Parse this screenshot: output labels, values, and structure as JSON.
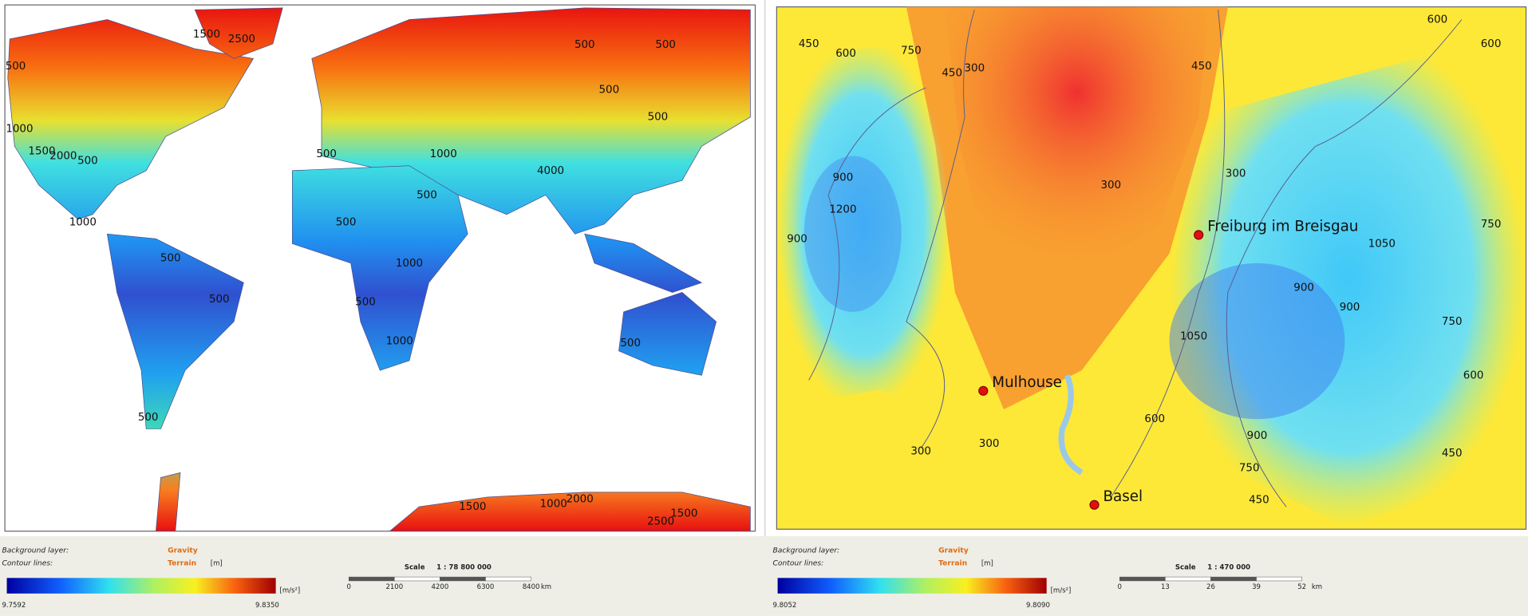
{
  "panels": [
    {
      "background_label": "Background layer:",
      "background_value": "Gravity",
      "contour_label": "Contour lines:",
      "contour_value": "Terrain",
      "contour_unit": "[m]",
      "colorbar_unit": "[m/s²]",
      "colorbar_min": "9.7592",
      "colorbar_max": "9.8350",
      "scale_label": "Scale",
      "scale_ratio": "1  :  78 800 000",
      "scale_ticks": [
        "0",
        "2100",
        "4200",
        "6300",
        "8400"
      ],
      "scale_unit": "km",
      "contour_labels": [
        "1500",
        "2500",
        "500",
        "500",
        "500",
        "1000",
        "1500",
        "2000",
        "500",
        "500",
        "1000",
        "500",
        "500",
        "1000",
        "500",
        "500",
        "1000",
        "500",
        "500",
        "1000",
        "500",
        "500",
        "1500",
        "2000",
        "1500",
        "2500",
        "1000",
        "4000",
        "500"
      ],
      "cities": []
    },
    {
      "background_label": "Background layer:",
      "background_value": "Gravity",
      "contour_label": "Contour lines:",
      "contour_value": "Terrain",
      "contour_unit": "[m]",
      "colorbar_unit": "[m/s²]",
      "colorbar_min": "9.8052",
      "colorbar_max": "9.8090",
      "scale_label": "Scale",
      "scale_ratio": "1  :  470 000",
      "scale_ticks": [
        "0",
        "13",
        "26",
        "39",
        "52"
      ],
      "scale_unit": "km",
      "contour_labels": [
        "450",
        "600",
        "750",
        "300",
        "450",
        "300",
        "900",
        "1200",
        "1050",
        "900",
        "750",
        "600",
        "450",
        "300",
        "300",
        "450",
        "750",
        "900",
        "600",
        "900",
        "300",
        "450",
        "600",
        "600",
        "750",
        "900",
        "1050"
      ],
      "cities": [
        "Freiburg im Breisgau",
        "Mulhouse",
        "Basel"
      ]
    }
  ]
}
